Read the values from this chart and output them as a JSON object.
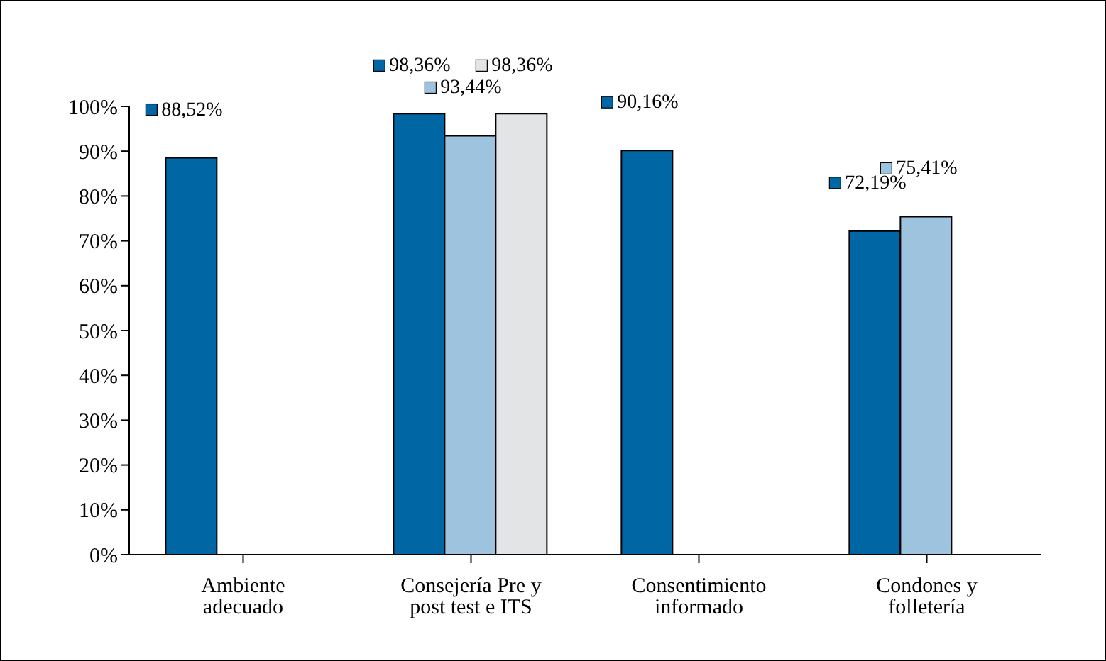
{
  "chart_data": {
    "type": "bar",
    "categories": [
      "Ambiente adecuado",
      "Consejería Pre y post test e ITS",
      "Consentimiento informado",
      "Condones y folletería"
    ],
    "series": [
      {
        "color": "#0066a4",
        "values": [
          88.52,
          98.36,
          90.16,
          72.19
        ],
        "value_labels": [
          "88,52%",
          "98,36%",
          "90,16%",
          "72,19%"
        ]
      },
      {
        "color": "#9ec3de",
        "values": [
          null,
          93.44,
          null,
          75.41
        ],
        "value_labels": [
          null,
          "93,44%",
          null,
          "75,41%"
        ]
      },
      {
        "color": "#e2e4e6",
        "values": [
          null,
          98.36,
          null,
          null
        ],
        "value_labels": [
          null,
          "98,36%",
          null,
          null
        ]
      }
    ],
    "ylim": [
      0,
      100
    ],
    "yticks": [
      {
        "value": 0,
        "label": "0%"
      },
      {
        "value": 10,
        "label": "10%"
      },
      {
        "value": 20,
        "label": "20%"
      },
      {
        "value": 30,
        "label": "30%"
      },
      {
        "value": 40,
        "label": "40%"
      },
      {
        "value": 50,
        "label": "50%"
      },
      {
        "value": 60,
        "label": "60%"
      },
      {
        "value": 70,
        "label": "70%"
      },
      {
        "value": 80,
        "label": "80%"
      },
      {
        "value": 90,
        "label": "90%"
      },
      {
        "value": 100,
        "label": "100%"
      }
    ],
    "grid": false,
    "legend": false
  }
}
